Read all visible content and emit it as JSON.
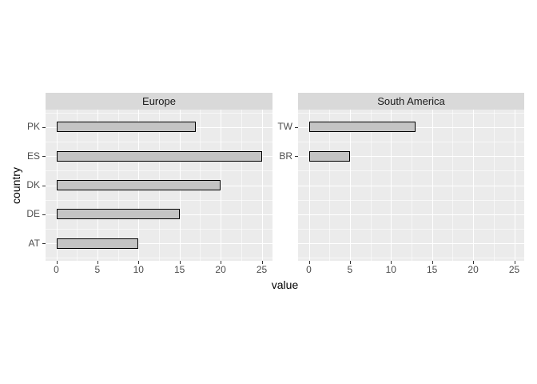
{
  "figure": {
    "background": "#FFFFFF"
  },
  "chart_data": {
    "type": "bar",
    "orientation": "horizontal",
    "title": "",
    "xlabel": "value",
    "ylabel": "country",
    "x_ticks": [
      0,
      5,
      10,
      15,
      20,
      25
    ],
    "x_minor_ticks": [
      2.5,
      7.5,
      12.5,
      17.5,
      22.5
    ],
    "xlim": [
      0,
      25
    ],
    "slots_per_panel": 5,
    "grid": true,
    "legend": "none",
    "facets": [
      {
        "label": "Europe",
        "categories": [
          "PK",
          "ES",
          "DK",
          "DE",
          "AT"
        ],
        "values": [
          17,
          25,
          20,
          15,
          10
        ]
      },
      {
        "label": "South America",
        "categories": [
          "TW",
          "BR"
        ],
        "values": [
          13,
          5
        ]
      }
    ],
    "colors": {
      "panel_bg": "#EBEBEB",
      "strip_bg": "#D9D9D9",
      "bar_fill": "#C4C4C4",
      "bar_border": "#000000",
      "gridline_major": "#FFFFFF",
      "gridline_minor": "rgba(255,255,255,0.6)",
      "axis_text": "#4D4D4D",
      "tick_mark": "#333333",
      "title_text": "#000000"
    }
  }
}
